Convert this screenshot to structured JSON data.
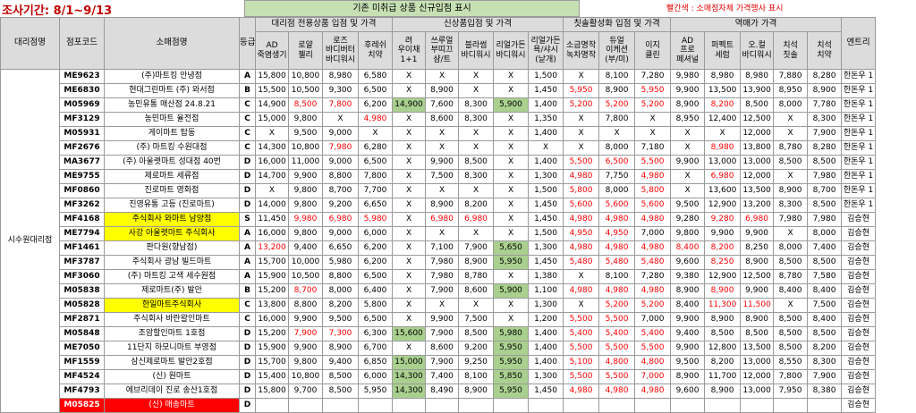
{
  "survey_label": "조사기간:",
  "survey_period": "8/1~9/13",
  "notice_green": "기존 미취급 상품 신규입점 표시",
  "notice_red": "빨간색 : 소매점자체 가격행사 표시",
  "headers": {
    "region": "대리점명",
    "code": "점포코드",
    "store": "소매점명",
    "grade": "등급",
    "group1": "대리점 전용상품 입점 및 가격",
    "group2": "신상품입점 및 가격",
    "group3": "칫솔활성화 입점 및 가격",
    "group4": "역매가 가격",
    "entry": "엔트리",
    "cols": [
      "AD\n죽염생기",
      "로얄\n젤리",
      "로즈\n바디버터\n바디워시",
      "후레쉬\n치약",
      "려\n우이채\n1+1",
      "쓰루얼\n부띠끄\n샴/트",
      "블라썸\n바디워시",
      "리얼가든\n바디워시",
      "리얼가든\n욕/샤시\n(낱개)",
      "소금명작\n녹차명작",
      "듀얼\n이케션\n(부/미)",
      "이지\n클린",
      "AD\n프로\n페셔널",
      "퍼펙트\n세럼",
      "오.컬\n바디워시",
      "치석\n칫솔",
      "치석\n치약"
    ]
  },
  "region_name": "시수원대리점",
  "rows": [
    {
      "code": "ME9623",
      "store": "(주)마트킹 안녕점",
      "grade": "A",
      "v": [
        "15,800",
        "10,800",
        "8,980",
        "6,580",
        "X",
        "X",
        "X",
        "X",
        "1,500",
        "X",
        "8,100",
        "7,280",
        "9,980",
        "8,980",
        "8,980",
        "7,880",
        "8,280"
      ],
      "entry": "한돈우 1"
    },
    {
      "code": "ME6830",
      "store": "현대그린마트 (주) 와서점",
      "grade": "B",
      "v": [
        "15,500",
        "10,500",
        "9,300",
        "6,500",
        "X",
        "8,900",
        "X",
        "X",
        "1,450",
        "5,950",
        "8,900",
        "5,950",
        "9,900",
        "13,500",
        "13,900",
        "8,950",
        "8,900"
      ],
      "entry": "한돈우 1"
    },
    {
      "code": "M05969",
      "store": "농민유통 매산점 24.8.21",
      "grade": "C",
      "v": [
        "14,900",
        "8,500",
        "7,800",
        "6,200",
        "14,900",
        "7,600",
        "8,300",
        "5,900",
        "1,400",
        "5,200",
        "5,200",
        "5,200",
        "8,900",
        "8,200",
        "8,500",
        "8,000",
        "7,780"
      ],
      "entry": "한돈우 1"
    },
    {
      "code": "MF3129",
      "store": "농민마트 율전점",
      "grade": "C",
      "v": [
        "15,000",
        "9,800",
        "X",
        "4,980",
        "X",
        "8,600",
        "8,300",
        "X",
        "1,350",
        "X",
        "7,800",
        "X",
        "8,950",
        "12,400",
        "12,500",
        "X",
        "8,300"
      ],
      "entry": "한돈우 1"
    },
    {
      "code": "M05931",
      "store": "게이마트 탑동",
      "grade": "C",
      "v": [
        "X",
        "9,500",
        "9,000",
        "X",
        "X",
        "X",
        "X",
        "X",
        "1,400",
        "X",
        "X",
        "X",
        "X",
        "X",
        "12,000",
        "X",
        "7,900"
      ],
      "entry": "한돈우 1"
    },
    {
      "code": "MF2676",
      "store": "(주) 마트킹 수원대점",
      "grade": "C",
      "v": [
        "14,300",
        "10,800",
        "7,980",
        "6,280",
        "X",
        "X",
        "X",
        "X",
        "X",
        "X",
        "8,000",
        "7,180",
        "X",
        "8,980",
        "13,800",
        "8,780",
        "8,280"
      ],
      "entry": "한돈우 1"
    },
    {
      "code": "MA3677",
      "store": "(주) 아울렛마트 성대점 40번",
      "grade": "D",
      "v": [
        "16,000",
        "11,000",
        "9,000",
        "6,500",
        "X",
        "9,900",
        "8,500",
        "X",
        "1,400",
        "5,500",
        "6,500",
        "5,500",
        "9,900",
        "13,000",
        "13,000",
        "8,500",
        "8,500"
      ],
      "entry": "한돈우 1"
    },
    {
      "code": "ME9755",
      "store": "제로마트 세류점",
      "grade": "D",
      "v": [
        "14,700",
        "9,900",
        "8,800",
        "7,800",
        "X",
        "7,500",
        "8,300",
        "X",
        "1,300",
        "4,980",
        "7,750",
        "4,980",
        "X",
        "6,980",
        "12,000",
        "X",
        "7,980"
      ],
      "entry": "한돈우 1"
    },
    {
      "code": "MF0860",
      "store": "진로마트 영화점",
      "grade": "D",
      "v": [
        "X",
        "9,800",
        "8,700",
        "7,700",
        "X",
        "X",
        "X",
        "X",
        "1,500",
        "5,800",
        "8,000",
        "5,800",
        "X",
        "13,600",
        "13,500",
        "8,900",
        "8,700"
      ],
      "entry": "한돈우 1"
    },
    {
      "code": "MF3262",
      "store": "진영유통 고등 (진로마트)",
      "grade": "D",
      "v": [
        "14,000",
        "9,800",
        "9,200",
        "6,650",
        "X",
        "8,900",
        "8,200",
        "X",
        "1,450",
        "5,600",
        "5,600",
        "5,600",
        "9,500",
        "12,900",
        "13,200",
        "8,300",
        "8,500"
      ],
      "entry": "한돈우 1"
    },
    {
      "code": "MF4168",
      "store": "주식회사 와마트 남양점",
      "grade": "S",
      "v": [
        "11,450",
        "9,980",
        "6,980",
        "5,980",
        "X",
        "6,980",
        "6,980",
        "X",
        "1,450",
        "4,980",
        "4,980",
        "4,980",
        "9,280",
        "9,280",
        "6,980",
        "7,980",
        "7,980"
      ],
      "entry": "김승현"
    },
    {
      "code": "ME7794",
      "store": "사강 아울렛마트 주식회사",
      "grade": "A",
      "v": [
        "16,000",
        "9,800",
        "9,000",
        "6,000",
        "X",
        "X",
        "X",
        "X",
        "1,500",
        "4,950",
        "4,950",
        "7,000",
        "9,800",
        "9,900",
        "9,900",
        "X",
        "8,000"
      ],
      "entry": "김승현"
    },
    {
      "code": "MF1461",
      "store": "판다원(향남점)",
      "grade": "A",
      "v": [
        "13,200",
        "9,400",
        "6,650",
        "6,200",
        "X",
        "7,100",
        "7,900",
        "5,650",
        "1,300",
        "4,980",
        "4,980",
        "4,980",
        "8,400",
        "8,200",
        "8,250",
        "8,000",
        "7,400"
      ],
      "entry": "김승현"
    },
    {
      "code": "MF3787",
      "store": "주식회사 광남 빌드마트",
      "grade": "A",
      "v": [
        "15,700",
        "10,000",
        "5,980",
        "6,200",
        "X",
        "7,980",
        "8,900",
        "5,950",
        "1,450",
        "5,480",
        "5,480",
        "5,480",
        "9,600",
        "8,250",
        "8,900",
        "8,500",
        "8,500"
      ],
      "entry": "김승현"
    },
    {
      "code": "MF3060",
      "store": "(주) 마트킹 고색 세수원점",
      "grade": "A",
      "v": [
        "15,900",
        "10,500",
        "8,800",
        "6,500",
        "X",
        "7,980",
        "8,780",
        "X",
        "1,380",
        "X",
        "8,100",
        "7,280",
        "9,380",
        "12,900",
        "12,500",
        "8,780",
        "7,580"
      ],
      "entry": "김승현"
    },
    {
      "code": "M05838",
      "store": "제로마트(주) 발안",
      "grade": "B",
      "v": [
        "15,200",
        "8,700",
        "8,000",
        "6,400",
        "X",
        "7,900",
        "8,600",
        "5,900",
        "1,100",
        "4,980",
        "4,980",
        "4,980",
        "8,900",
        "8,900",
        "9,900",
        "8,400",
        "8,400"
      ],
      "entry": "김승현"
    },
    {
      "code": "M05828",
      "store": "한일마트주식회사",
      "grade": "C",
      "v": [
        "13,800",
        "8,800",
        "8,200",
        "5,800",
        "X",
        "X",
        "X",
        "X",
        "1,300",
        "X",
        "5,200",
        "5,200",
        "8,400",
        "11,300",
        "11,500",
        "X",
        "7,500"
      ],
      "entry": "김승현"
    },
    {
      "code": "MF2871",
      "store": "주식회사 바란왈인마트",
      "grade": "C",
      "v": [
        "16,000",
        "9,900",
        "9,500",
        "6,500",
        "X",
        "9,900",
        "7,500",
        "X",
        "1,200",
        "5,500",
        "5,500",
        "7,000",
        "9,900",
        "8,900",
        "8,900",
        "8,500",
        "8,400"
      ],
      "entry": "김승현"
    },
    {
      "code": "M05848",
      "store": "조암할인마트 1호점",
      "grade": "D",
      "v": [
        "15,200",
        "7,900",
        "7,300",
        "6,300",
        "15,600",
        "7,900",
        "8,500",
        "5,980",
        "1,400",
        "5,400",
        "5,400",
        "5,400",
        "9,400",
        "8,500",
        "8,500",
        "8,500",
        "8,500"
      ],
      "entry": "김승현"
    },
    {
      "code": "ME7050",
      "store": "11단지 하모니마트 부영점",
      "grade": "D",
      "v": [
        "15,900",
        "9,900",
        "8,900",
        "6,700",
        "X",
        "8,600",
        "9,200",
        "5,950",
        "1,400",
        "5,500",
        "5,500",
        "5,500",
        "9,900",
        "12,800",
        "13,500",
        "8,500",
        "8,200"
      ],
      "entry": "김승현"
    },
    {
      "code": "MF1559",
      "store": "삼신제로마트 발안2호점",
      "grade": "D",
      "v": [
        "15,700",
        "9,800",
        "9,400",
        "6,850",
        "15,000",
        "7,900",
        "9,250",
        "5,950",
        "1,400",
        "5,100",
        "4,800",
        "4,800",
        "9,500",
        "8,200",
        "13,000",
        "8,550",
        "8,300"
      ],
      "entry": "김승현"
    },
    {
      "code": "MF4524",
      "store": "(신) 원마트",
      "grade": "D",
      "v": [
        "15,400",
        "10,800",
        "8,500",
        "6,000",
        "14,300",
        "7,400",
        "8,100",
        "5,850",
        "1,300",
        "5,500",
        "5,500",
        "7,000",
        "8,900",
        "11,700",
        "12,000",
        "7,800",
        "7,900"
      ],
      "entry": "김승현"
    },
    {
      "code": "MF4793",
      "store": "에브리데이 진로 송산1호점",
      "grade": "D",
      "v": [
        "15,800",
        "9,700",
        "8,500",
        "5,950",
        "14,300",
        "8,490",
        "8,900",
        "5,950",
        "1,450",
        "4,980",
        "4,980",
        "4,980",
        "9,600",
        "8,900",
        "13,000",
        "7,950",
        "8,380"
      ],
      "entry": "김승현"
    },
    {
      "code": "M05825",
      "store": "(신) 매송마트",
      "grade": "D",
      "v": [
        "",
        "",
        "",
        "",
        "",
        "",
        "",
        "",
        "",
        "",
        "",
        "",
        "",
        "",
        "",
        "",
        ""
      ],
      "entry": "김승현"
    }
  ]
}
